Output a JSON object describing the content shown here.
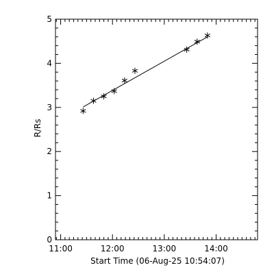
{
  "chart_data": {
    "type": "scatter",
    "xlabel": "Start Time (06-Aug-25 10:54:07)",
    "ylabel": "R/Rs",
    "x_ticks": [
      "11:00",
      "12:00",
      "13:00",
      "14:00"
    ],
    "y_ticks": [
      "0",
      "1",
      "2",
      "3",
      "4",
      "5"
    ],
    "xlim": [
      "10:54",
      "14:48"
    ],
    "ylim": [
      0,
      5
    ],
    "grid": false,
    "marker": "asterisk",
    "series": [
      {
        "x": [
          "11:26",
          "11:38",
          "11:50",
          "12:02",
          "12:14",
          "12:26",
          "13:26",
          "13:38",
          "13:50"
        ],
        "y": [
          2.92,
          3.15,
          3.25,
          3.37,
          3.61,
          3.83,
          4.31,
          4.49,
          4.63
        ]
      }
    ],
    "fit_line": {
      "x": [
        "11:26",
        "13:50"
      ],
      "y": [
        3.01,
        4.6
      ]
    }
  }
}
